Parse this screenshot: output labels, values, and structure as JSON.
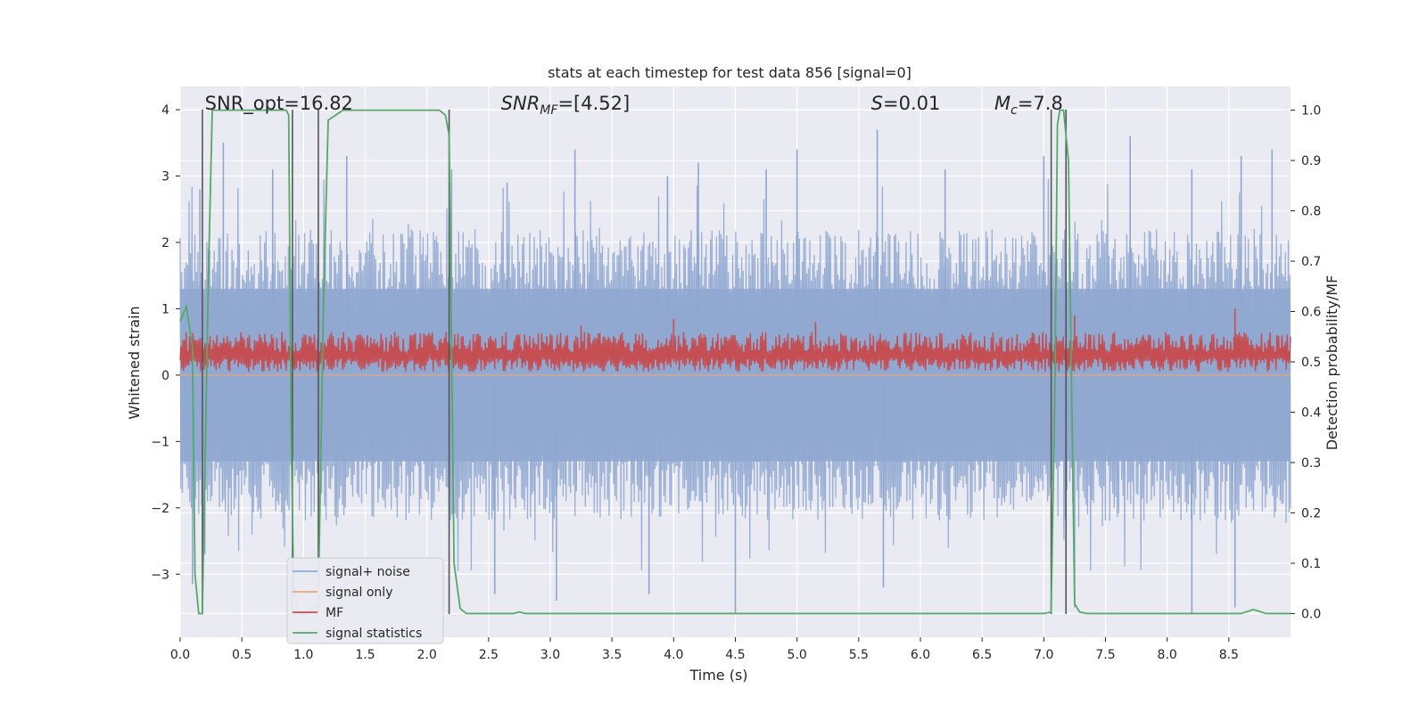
{
  "chart_data": {
    "type": "line",
    "title": "stats at each timestep for test data 856 [signal=0]",
    "xlabel": "Time (s)",
    "ylabel": "Whitened strain",
    "ylabel_right": "Detection probability/MF",
    "xlim": [
      0.0,
      9.0
    ],
    "ylim": [
      -3.95,
      4.35
    ],
    "ylim_right": [
      -0.047,
      1.047
    ],
    "xticks": [
      "0.0",
      "0.5",
      "1.0",
      "1.5",
      "2.0",
      "2.5",
      "3.0",
      "3.5",
      "4.0",
      "4.5",
      "5.0",
      "5.5",
      "6.0",
      "6.5",
      "7.0",
      "7.5",
      "8.0",
      "8.5"
    ],
    "yticks": [
      "4",
      "3",
      "2",
      "1",
      "0",
      "−1",
      "−2",
      "−3"
    ],
    "yticks_right": [
      "1.0",
      "0.9",
      "0.8",
      "0.7",
      "0.6",
      "0.5",
      "0.4",
      "0.3",
      "0.2",
      "0.1",
      "0.0"
    ],
    "annotations": [
      {
        "text": "SNR_opt=16.82",
        "x": 0.2
      },
      {
        "text_main": "SNR",
        "text_sub": "MF",
        "text_rest": "=[4.52]",
        "x": 2.6
      },
      {
        "text_main": "S",
        "text_sub": "",
        "text_rest": "=0.01",
        "x": 5.6
      },
      {
        "text_main": "M",
        "text_sub": "c",
        "text_rest": "=7.8",
        "x": 6.6
      }
    ],
    "legend": {
      "position": "lower-left",
      "entries": [
        {
          "name": "signal+ noise",
          "color": "#8fa7d0"
        },
        {
          "name": "signal only",
          "color": "#e8a57c"
        },
        {
          "name": "MF",
          "color": "#c44e52"
        },
        {
          "name": "signal statistics",
          "color": "#55a868"
        }
      ]
    },
    "colors": {
      "background": "#eaeaf2",
      "grid": "#ffffff",
      "noise": "#8fa7d0",
      "signal": "#e8a57c",
      "mf": "#c44e52",
      "stat": "#55a868",
      "vline": "#555555"
    },
    "series": [
      {
        "name": "signal+ noise",
        "type": "noise-band",
        "axis": "left",
        "note": "dense whitened strain noise, approx. ±2.5 with spikes to ±3.8",
        "typical_amplitude": 2.2,
        "spike_peaks": [
          [
            0.16,
            2.8
          ],
          [
            0.35,
            3.5
          ],
          [
            0.75,
            3.1
          ],
          [
            1.35,
            3.3
          ],
          [
            2.2,
            3.1
          ],
          [
            2.65,
            2.9
          ],
          [
            3.2,
            3.4
          ],
          [
            3.95,
            3.0
          ],
          [
            4.2,
            3.2
          ],
          [
            4.75,
            3.1
          ],
          [
            5.0,
            3.4
          ],
          [
            5.65,
            3.7
          ],
          [
            6.2,
            3.1
          ],
          [
            7.0,
            3.3
          ],
          [
            7.7,
            3.6
          ],
          [
            8.2,
            3.1
          ],
          [
            8.6,
            3.3
          ],
          [
            8.85,
            3.4
          ]
        ],
        "spike_troughs": [
          [
            0.1,
            -3.15
          ],
          [
            0.2,
            -2.7
          ],
          [
            2.55,
            -3.3
          ],
          [
            3.05,
            -3.4
          ],
          [
            3.8,
            -3.3
          ],
          [
            4.5,
            -3.6
          ],
          [
            5.7,
            -3.2
          ],
          [
            7.25,
            -3.5
          ],
          [
            8.2,
            -3.6
          ],
          [
            8.55,
            -3.5
          ]
        ]
      },
      {
        "name": "signal only",
        "type": "line",
        "axis": "left",
        "x": [
          0.0,
          9.0
        ],
        "y": [
          0.0,
          0.0
        ]
      },
      {
        "name": "MF",
        "type": "noise-band",
        "axis": "left",
        "note": "matched filter output oscillating between about 0.0 and 0.7",
        "min": 0.0,
        "max": 0.7,
        "peak_points": [
          [
            3.25,
            0.75
          ],
          [
            4.0,
            0.85
          ],
          [
            5.15,
            0.8
          ],
          [
            7.25,
            0.9
          ],
          [
            8.55,
            1.0
          ]
        ]
      },
      {
        "name": "signal statistics",
        "type": "line",
        "axis": "right",
        "x": [
          0.0,
          0.05,
          0.1,
          0.12,
          0.15,
          0.18,
          0.23,
          0.26,
          0.86,
          0.88,
          0.9,
          0.92,
          0.96,
          1.02,
          1.12,
          1.16,
          1.2,
          1.26,
          1.32,
          1.5,
          2.1,
          2.15,
          2.18,
          2.22,
          2.27,
          2.32,
          2.7,
          2.75,
          2.8,
          7.0,
          7.06,
          7.09,
          7.11,
          7.13,
          7.16,
          7.2,
          7.25,
          7.29,
          7.35,
          8.6,
          8.7,
          8.8,
          9.0
        ],
        "y": [
          0.58,
          0.61,
          0.53,
          0.08,
          0.0,
          0.0,
          0.68,
          1.0,
          1.0,
          0.99,
          0.35,
          0.05,
          0.0,
          0.0,
          0.02,
          0.6,
          0.98,
          0.99,
          1.0,
          1.0,
          1.0,
          0.99,
          0.95,
          0.1,
          0.01,
          0.0,
          0.0,
          0.003,
          0.0,
          0.0,
          0.003,
          0.45,
          0.97,
          1.0,
          1.0,
          0.9,
          0.02,
          0.003,
          0.0,
          0.0,
          0.008,
          0.0,
          0.0
        ]
      }
    ],
    "vertical_lines": {
      "x": [
        0.18,
        0.91,
        1.12,
        2.18,
        7.06,
        7.18
      ],
      "range_left_axis": [
        -3.6,
        4.0
      ]
    }
  }
}
